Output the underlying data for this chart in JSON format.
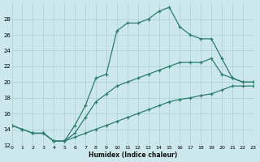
{
  "xlabel": "Humidex (Indice chaleur)",
  "xlim": [
    0,
    23
  ],
  "ylim": [
    12,
    30
  ],
  "yticks": [
    12,
    14,
    16,
    18,
    20,
    22,
    24,
    26,
    28
  ],
  "xticks": [
    0,
    1,
    2,
    3,
    4,
    5,
    6,
    7,
    8,
    9,
    10,
    11,
    12,
    13,
    14,
    15,
    16,
    17,
    18,
    19,
    20,
    21,
    22,
    23
  ],
  "xtick_labels": [
    "0",
    "1",
    "2",
    "3",
    "4",
    "5",
    "6",
    "7",
    "8",
    "9",
    "10",
    "11",
    "12",
    "13",
    "14",
    "15",
    "16",
    "17",
    "18",
    "19",
    "20",
    "21",
    "22",
    "23"
  ],
  "bg_color": "#cce8ed",
  "line_color": "#2e7d6e",
  "grid_color": "#aacdd4",
  "curve_top_x": [
    2,
    3,
    4,
    5,
    6,
    7,
    8,
    9,
    10,
    11,
    12,
    13,
    14,
    15,
    16,
    17,
    18,
    19,
    20,
    21,
    22,
    23
  ],
  "curve_top_y": [
    13.5,
    13.5,
    12.5,
    12.5,
    14.5,
    17.0,
    20.5,
    21.0,
    26.5,
    27.5,
    27.5,
    28.0,
    29.0,
    29.5,
    27.0,
    26.0,
    25.5,
    25.5,
    23.0,
    20.5,
    20.0,
    20.0
  ],
  "curve_mid_x": [
    0,
    1,
    2,
    3,
    4,
    5,
    6,
    7,
    8,
    9,
    10,
    11,
    12,
    13,
    14,
    15,
    16,
    17,
    18,
    19,
    20,
    21,
    22,
    23
  ],
  "curve_mid_y": [
    14.5,
    14.0,
    13.5,
    13.5,
    12.5,
    12.5,
    13.5,
    15.5,
    17.5,
    18.5,
    19.5,
    20.0,
    20.5,
    21.0,
    21.5,
    22.0,
    22.5,
    22.5,
    22.5,
    23.0,
    21.0,
    20.5,
    20.0,
    20.0
  ],
  "curve_bot_x": [
    0,
    1,
    2,
    3,
    4,
    5,
    6,
    7,
    8,
    9,
    10,
    11,
    12,
    13,
    14,
    15,
    16,
    17,
    18,
    19,
    20,
    21,
    22,
    23
  ],
  "curve_bot_y": [
    14.5,
    14.0,
    13.5,
    13.5,
    12.5,
    12.5,
    13.0,
    13.5,
    14.0,
    14.5,
    15.0,
    15.5,
    16.0,
    16.5,
    17.0,
    17.5,
    17.8,
    18.0,
    18.3,
    18.5,
    19.0,
    19.5,
    19.5,
    19.5
  ]
}
